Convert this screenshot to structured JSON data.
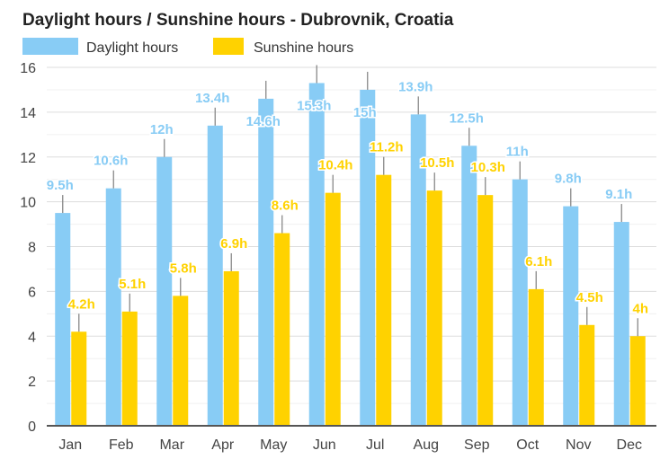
{
  "chart_data": {
    "type": "bar",
    "title": "Daylight hours / Sunshine hours - Dubrovnik, Croatia",
    "categories": [
      "Jan",
      "Feb",
      "Mar",
      "Apr",
      "May",
      "Jun",
      "Jul",
      "Aug",
      "Sep",
      "Oct",
      "Nov",
      "Dec"
    ],
    "series": [
      {
        "name": "Daylight hours",
        "color": "#88CCF5",
        "values": [
          9.5,
          10.6,
          12,
          13.4,
          14.6,
          15.3,
          15,
          13.9,
          12.5,
          11,
          9.8,
          9.1
        ],
        "labels": [
          "9.5h",
          "10.6h",
          "12h",
          "13.4h",
          "14.6h",
          "15.3h",
          "15h",
          "13.9h",
          "12.5h",
          "11h",
          "9.8h",
          "9.1h"
        ]
      },
      {
        "name": "Sunshine hours",
        "color": "#FFD200",
        "values": [
          4.2,
          5.1,
          5.8,
          6.9,
          8.6,
          10.4,
          11.2,
          10.5,
          10.3,
          6.1,
          4.5,
          4
        ],
        "labels": [
          "4.2h",
          "5.1h",
          "5.8h",
          "6.9h",
          "8.6h",
          "10.4h",
          "11.2h",
          "10.5h",
          "10.3h",
          "6.1h",
          "4.5h",
          "4h"
        ]
      }
    ],
    "yticks": [
      "0",
      "2",
      "4",
      "6",
      "8",
      "10",
      "12",
      "14",
      "16"
    ],
    "ylim": [
      0,
      16
    ],
    "grid": true,
    "legend": "top-left"
  }
}
